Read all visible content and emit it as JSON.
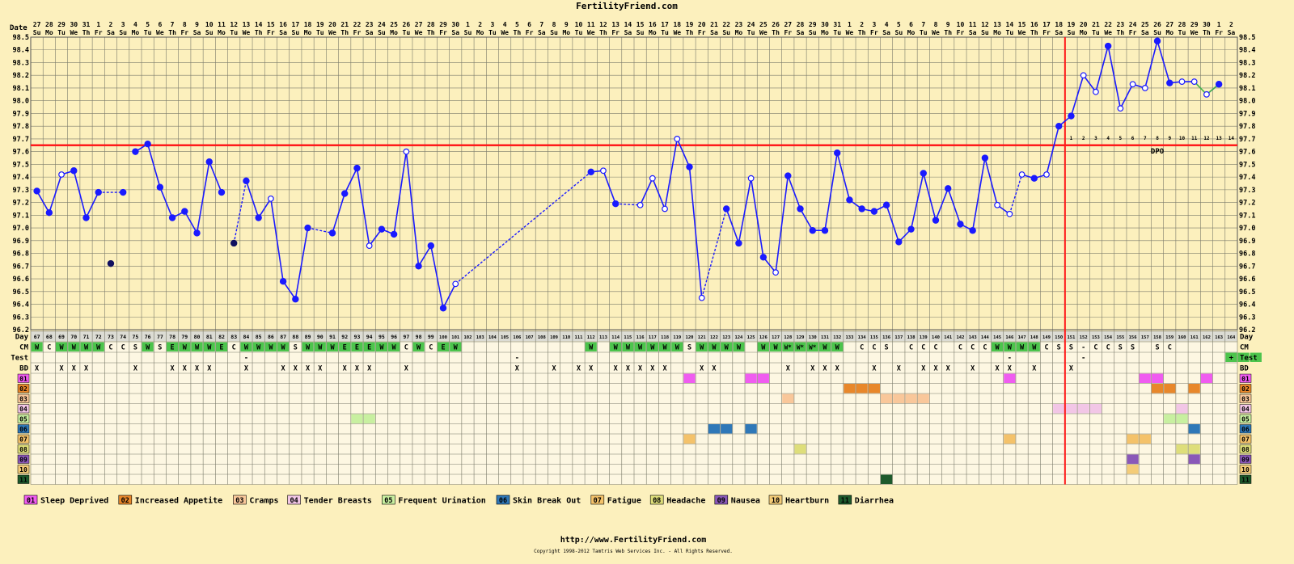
{
  "site_title": "FertilityFriend.com",
  "footer_url": "http://www.FertilityFriend.com",
  "copyright": "Copyright 1998-2012 Tamtris Web Services Inc. - All Rights Reserved.",
  "chart_data": {
    "type": "line",
    "title": "FertilityFriend.com",
    "ylabel": "Temperature",
    "ylim": [
      96.2,
      98.5
    ],
    "y_ticks": [
      "96.2",
      "96.3",
      "96.4",
      "96.5",
      "96.6",
      "96.7",
      "96.8",
      "96.9",
      "97.0",
      "97.1",
      "97.2",
      "97.3",
      "97.4",
      "97.5",
      "97.6",
      "97.7",
      "97.8",
      "97.9",
      "98.0",
      "98.1",
      "98.2",
      "98.3",
      "98.4",
      "98.5"
    ],
    "row_labels": {
      "date": "Date",
      "day": "Day",
      "cm": "CM",
      "test": "Test",
      "bd": "BD"
    },
    "dates": [
      "27",
      "28",
      "29",
      "30",
      "31",
      "1",
      "2",
      "3",
      "4",
      "5",
      "6",
      "7",
      "8",
      "9",
      "10",
      "11",
      "12",
      "13",
      "14",
      "15",
      "16",
      "17",
      "18",
      "19",
      "20",
      "21",
      "22",
      "23",
      "24",
      "25",
      "26",
      "27",
      "28",
      "29",
      "30",
      "1",
      "2",
      "3",
      "4",
      "5",
      "6",
      "7",
      "8",
      "9",
      "10",
      "11",
      "12",
      "13",
      "14",
      "15",
      "16",
      "17",
      "18",
      "19",
      "20",
      "21",
      "22",
      "23",
      "24",
      "25",
      "26",
      "27",
      "28",
      "29",
      "30",
      "31",
      "1",
      "2",
      "3",
      "4",
      "5",
      "6",
      "7",
      "8",
      "9",
      "10",
      "11",
      "12",
      "13",
      "14",
      "15",
      "16",
      "17",
      "18",
      "19",
      "20",
      "21",
      "22",
      "23",
      "24",
      "25",
      "26",
      "27",
      "28",
      "29",
      "30",
      "1",
      "2"
    ],
    "weekdays": [
      "Su",
      "Mo",
      "Tu",
      "We",
      "Th",
      "Fr",
      "Sa",
      "Su",
      "Mo",
      "Tu",
      "We",
      "Th",
      "Fr",
      "Sa",
      "Su",
      "Mo",
      "Tu",
      "We",
      "Th",
      "Fr",
      "Sa",
      "Su",
      "Mo",
      "Tu",
      "We",
      "Th",
      "Fr",
      "Sa",
      "Su",
      "Mo",
      "Tu",
      "We",
      "Th",
      "Fr",
      "Sa",
      "Su",
      "Mo",
      "Tu",
      "We",
      "Th",
      "Fr",
      "Sa",
      "Su",
      "Mo",
      "Tu",
      "We",
      "Th",
      "Fr",
      "Sa",
      "Su",
      "Mo",
      "Tu",
      "We",
      "Th",
      "Fr",
      "Sa",
      "Su",
      "Mo",
      "Tu",
      "We",
      "Th",
      "Fr",
      "Sa",
      "Su",
      "Mo",
      "Tu",
      "We",
      "Th",
      "Fr",
      "Sa",
      "Su",
      "Mo",
      "Tu",
      "We",
      "Th",
      "Fr",
      "Sa",
      "Su",
      "Mo",
      "Tu",
      "We",
      "Th",
      "Fr",
      "Sa",
      "Su",
      "Mo",
      "Tu",
      "We",
      "Th",
      "Fr",
      "Sa",
      "Su",
      "Mo",
      "Tu",
      "We",
      "Th",
      "Fr",
      "Sa"
    ],
    "cycle_days": [
      "67",
      "68",
      "69",
      "70",
      "71",
      "72",
      "73",
      "74",
      "75",
      "76",
      "77",
      "78",
      "79",
      "80",
      "81",
      "82",
      "83",
      "84",
      "85",
      "86",
      "87",
      "88",
      "89",
      "90",
      "91",
      "92",
      "93",
      "94",
      "95",
      "96",
      "97",
      "98",
      "99",
      "100",
      "101",
      "102",
      "103",
      "104",
      "105",
      "106",
      "107",
      "108",
      "109",
      "110",
      "111",
      "112",
      "113",
      "114",
      "115",
      "116",
      "117",
      "118",
      "119",
      "120",
      "121",
      "122",
      "123",
      "124",
      "125",
      "126",
      "127",
      "128",
      "129",
      "130",
      "131",
      "132",
      "133",
      "134",
      "135",
      "136",
      "137",
      "138",
      "139",
      "140",
      "141",
      "142",
      "143",
      "144",
      "145",
      "146",
      "147",
      "148",
      "149",
      "150",
      "151",
      "152",
      "153",
      "154",
      "155",
      "156",
      "157",
      "158",
      "159",
      "160",
      "161",
      "162",
      "163",
      "164"
    ],
    "temps": [
      97.29,
      97.12,
      97.42,
      97.45,
      97.08,
      97.28,
      96.72,
      97.28,
      97.6,
      97.66,
      97.32,
      97.08,
      97.13,
      96.96,
      97.52,
      97.28,
      96.88,
      97.37,
      97.08,
      97.23,
      96.58,
      96.44,
      97.0,
      null,
      96.96,
      97.27,
      97.47,
      96.86,
      96.99,
      96.95,
      97.6,
      96.7,
      96.86,
      96.37,
      96.56,
      null,
      null,
      null,
      null,
      null,
      null,
      null,
      null,
      null,
      null,
      97.44,
      97.45,
      97.19,
      null,
      97.18,
      97.39,
      97.15,
      97.7,
      97.48,
      96.45,
      null,
      97.15,
      96.88,
      97.39,
      96.77,
      96.65,
      97.41,
      97.15,
      96.98,
      96.98,
      97.59,
      97.22,
      97.15,
      97.13,
      97.18,
      96.89,
      96.99,
      97.43,
      97.06,
      97.31,
      97.03,
      96.98,
      97.55,
      97.18,
      97.11,
      97.42,
      97.39,
      97.42,
      97.8,
      97.88,
      98.2,
      98.07,
      98.43,
      97.94,
      98.13,
      98.1,
      98.47,
      98.14,
      98.15,
      98.15,
      98.05,
      98.13,
      null
    ],
    "open_points": [
      2,
      19,
      27,
      30,
      34,
      46,
      49,
      50,
      51,
      52,
      54,
      58,
      60,
      78,
      79,
      80,
      82,
      85,
      86,
      88,
      89,
      90,
      93,
      94,
      95
    ],
    "unlinked_points": [
      6,
      16
    ],
    "solid_segments": [
      [
        0,
        5
      ],
      [
        8,
        15
      ],
      [
        17,
        22
      ],
      [
        24,
        34
      ],
      [
        45,
        47
      ],
      [
        49,
        54
      ],
      [
        56,
        79
      ],
      [
        80,
        94
      ],
      [
        95,
        96
      ]
    ],
    "dashed_segments": [
      [
        5,
        7
      ],
      [
        16,
        17
      ],
      [
        22,
        24
      ],
      [
        34,
        45
      ],
      [
        47,
        49
      ],
      [
        54,
        56
      ],
      [
        79,
        80
      ],
      [
        94,
        95
      ]
    ],
    "green_segments": [
      [
        94,
        96
      ]
    ],
    "coverline": 97.65,
    "ovulation_index": 83,
    "dpo_label": "DPO",
    "dpo_numbers": [
      "1",
      "2",
      "3",
      "4",
      "5",
      "6",
      "7",
      "8",
      "9",
      "10",
      "11",
      "12",
      "13",
      "14"
    ],
    "cm": [
      "W",
      "C",
      "W",
      "W",
      "W",
      "W",
      "C",
      "C",
      "S",
      "W",
      "S",
      "E",
      "W",
      "W",
      "W",
      "E",
      "C",
      "W",
      "W",
      "W",
      "W",
      "S",
      "W",
      "W",
      "W",
      "E",
      "E",
      "E",
      "W",
      "W",
      "C",
      "W",
      "C",
      "E",
      "W",
      "",
      "",
      "",
      "",
      "",
      "",
      "",
      "",
      "",
      "",
      "W",
      "",
      "W",
      "W",
      "W",
      "W",
      "W",
      "W",
      "S",
      "W",
      "W",
      "W",
      "W",
      "",
      "W",
      "W",
      "W*",
      "W*",
      "W*",
      "W",
      "W",
      "",
      "C",
      "C",
      "S",
      "",
      "C",
      "C",
      "C",
      "",
      "C",
      "C",
      "C",
      "W",
      "W",
      "W",
      "W",
      "C",
      "S",
      "S",
      "-",
      "C",
      "C",
      "S",
      "S",
      "",
      "S",
      "C",
      "",
      "",
      "",
      "",
      ""
    ],
    "test": [
      "",
      "",
      "",
      "",
      "",
      "",
      "",
      "",
      "",
      "",
      "",
      "",
      "",
      "",
      "",
      "",
      "",
      "-",
      "",
      "",
      "",
      "",
      "",
      "",
      "",
      "",
      "",
      "",
      "",
      "",
      "",
      "",
      "",
      "",
      "",
      "",
      "",
      "",
      "",
      "-",
      "",
      "",
      "",
      "",
      "",
      "",
      "",
      "",
      "",
      "",
      "",
      "",
      "",
      "",
      "",
      "",
      "",
      "",
      "",
      "",
      "",
      "",
      "",
      "",
      "",
      "",
      "",
      "",
      "",
      "",
      "",
      "",
      "",
      "",
      "",
      "",
      "",
      "",
      "",
      "-",
      "",
      "",
      "",
      "",
      "",
      "-",
      "",
      "",
      "",
      "",
      "",
      "",
      "",
      "",
      "",
      "",
      "",
      "+",
      "+",
      "+"
    ],
    "bd": [
      "X",
      "",
      "X",
      "X",
      "X",
      "",
      "",
      "",
      "X",
      "",
      "",
      "X",
      "X",
      "X",
      "X",
      "",
      "",
      "X",
      "",
      "",
      "X",
      "X",
      "X",
      "X",
      "",
      "X",
      "X",
      "X",
      "",
      "",
      "X",
      "",
      "",
      "",
      "",
      "",
      "",
      "",
      "",
      "X",
      "",
      "",
      "X",
      "",
      "X",
      "X",
      "",
      "X",
      "X",
      "X",
      "X",
      "X",
      "",
      "",
      "X",
      "X",
      "",
      "",
      "",
      "",
      "",
      "X",
      "",
      "X",
      "X",
      "X",
      "",
      "",
      "X",
      "",
      "X",
      "",
      "X",
      "X",
      "X",
      "",
      "X",
      "",
      "X",
      "X",
      "",
      "X",
      "",
      "",
      "X",
      "",
      "",
      "",
      "",
      "",
      "",
      "",
      "",
      "",
      "",
      "",
      "",
      ""
    ],
    "symptoms": [
      {
        "code": "01",
        "name": "Sleep Deprived",
        "color": "#f05cf0",
        "days": [
          53,
          58,
          59,
          79,
          90,
          91,
          95
        ]
      },
      {
        "code": "02",
        "name": "Increased Appetite",
        "color": "#e8872a",
        "days": [
          66,
          67,
          68,
          91,
          92,
          94
        ]
      },
      {
        "code": "03",
        "name": "Cramps",
        "color": "#f9c79a",
        "days": [
          61,
          69,
          70,
          71,
          72
        ]
      },
      {
        "code": "04",
        "name": "Tender Breasts",
        "color": "#f2c6e6",
        "days": [
          83,
          84,
          85,
          86,
          93
        ]
      },
      {
        "code": "05",
        "name": "Frequent Urination",
        "color": "#c8f0a0",
        "days": [
          26,
          27,
          92,
          93
        ]
      },
      {
        "code": "06",
        "name": "Skin Break Out",
        "color": "#2f78b8",
        "days": [
          55,
          56,
          58,
          94
        ]
      },
      {
        "code": "07",
        "name": "Fatigue",
        "color": "#f4c26a",
        "days": [
          53,
          79,
          89,
          90
        ]
      },
      {
        "code": "08",
        "name": "Headache",
        "color": "#dede7a",
        "days": [
          62,
          93,
          94
        ]
      },
      {
        "code": "09",
        "name": "Nausea",
        "color": "#8a58b8",
        "days": [
          89,
          94
        ]
      },
      {
        "code": "10",
        "name": "Heartburn",
        "color": "#f4cc78",
        "days": [
          89
        ]
      },
      {
        "code": "11",
        "name": "Diarrhea",
        "color": "#1d5a2c",
        "days": [
          69
        ]
      }
    ],
    "colors": {
      "line": "#1a1aff",
      "coverline": "#ff1a1a",
      "ovulation": "#ff1a1a",
      "green_line": "#44b844",
      "cm_green": "#4cc44c",
      "background": "#fcf0bd",
      "grid": "#7a7a6a"
    }
  }
}
